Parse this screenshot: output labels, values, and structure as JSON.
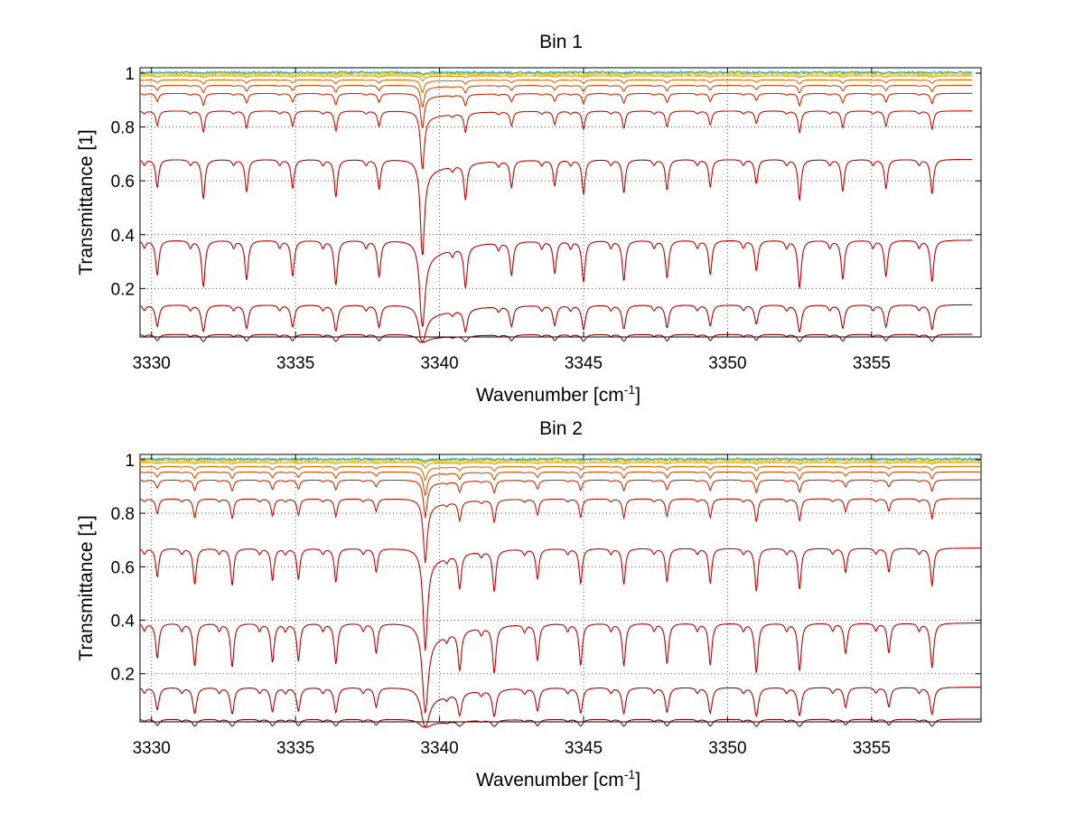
{
  "chart_data": [
    {
      "type": "line",
      "title": "Bin 1",
      "xlabel": "Wavenumber [cm",
      "xlabel_sup": "-1",
      "xlabel_end": "]",
      "ylabel": "Transmittance [1]",
      "xlim": [
        3329.6,
        3358.8
      ],
      "ylim": [
        0.02,
        1.02
      ],
      "xticks": [
        3330,
        3335,
        3340,
        3345,
        3350,
        3355
      ],
      "xtick_labels": [
        "3330",
        "3335",
        "3340",
        "3345",
        "3350",
        "3355"
      ],
      "yticks": [
        0.2,
        0.4,
        0.6,
        0.8,
        1.0
      ],
      "ytick_labels": [
        "0.2",
        "0.4",
        "0.6",
        "0.8",
        "1"
      ],
      "grid": true,
      "x_range_drawn": [
        3329.6,
        3358.5
      ],
      "main_line": {
        "x": 3339.4,
        "width": 0.07
      },
      "lines": [
        3330.2,
        3331.8,
        3333.3,
        3334.9,
        3336.4,
        3337.9,
        3340.9,
        3342.5,
        3344.0,
        3345.0,
        3346.4,
        3347.9,
        3349.4,
        3351.0,
        3352.5,
        3354.0,
        3355.5,
        3357.1
      ],
      "series": [
        {
          "baseline": 0.03,
          "color": "#8b0000"
        },
        {
          "baseline": 0.14,
          "color": "#b00000"
        },
        {
          "baseline": 0.38,
          "color": "#c00000"
        },
        {
          "baseline": 0.68,
          "color": "#c80000"
        },
        {
          "baseline": 0.86,
          "color": "#cc1100"
        },
        {
          "baseline": 0.925,
          "color": "#d42a00"
        },
        {
          "baseline": 0.955,
          "color": "#dc4a00"
        },
        {
          "baseline": 0.975,
          "color": "#e46a00"
        },
        {
          "baseline": 0.99,
          "color": "#ec9000"
        },
        {
          "baseline": 0.997,
          "color": "#f4b800"
        },
        {
          "baseline": 1.0,
          "color": "#ffe400"
        },
        {
          "baseline": 1.003,
          "color": "#20a8c8"
        }
      ]
    },
    {
      "type": "line",
      "title": "Bin 2",
      "xlabel": "Wavenumber [cm",
      "xlabel_sup": "-1",
      "xlabel_end": "]",
      "ylabel": "Transmittance [1]",
      "xlim": [
        3329.6,
        3358.8
      ],
      "ylim": [
        0.02,
        1.02
      ],
      "xticks": [
        3330,
        3335,
        3340,
        3345,
        3350,
        3355
      ],
      "xtick_labels": [
        "3330",
        "3335",
        "3340",
        "3345",
        "3350",
        "3355"
      ],
      "yticks": [
        0.2,
        0.4,
        0.6,
        0.8,
        1.0
      ],
      "ytick_labels": [
        "0.2",
        "0.4",
        "0.6",
        "0.8",
        "1"
      ],
      "grid": true,
      "x_range_drawn": [
        3329.6,
        3358.8
      ],
      "main_line": {
        "x": 3339.5,
        "width": 0.08
      },
      "lines": [
        3330.2,
        3331.5,
        3332.8,
        3334.2,
        3335.1,
        3336.4,
        3337.8,
        3340.7,
        3341.9,
        3343.4,
        3344.9,
        3346.4,
        3347.9,
        3349.4,
        3351.0,
        3352.5,
        3354.1,
        3355.6,
        3357.1
      ],
      "series": [
        {
          "baseline": 0.03,
          "color": "#8b0000"
        },
        {
          "baseline": 0.15,
          "color": "#b00000"
        },
        {
          "baseline": 0.39,
          "color": "#c00000"
        },
        {
          "baseline": 0.67,
          "color": "#c80000"
        },
        {
          "baseline": 0.855,
          "color": "#cc1100"
        },
        {
          "baseline": 0.925,
          "color": "#d42a00"
        },
        {
          "baseline": 0.955,
          "color": "#dc4a00"
        },
        {
          "baseline": 0.975,
          "color": "#e46a00"
        },
        {
          "baseline": 0.99,
          "color": "#ec9000"
        },
        {
          "baseline": 0.997,
          "color": "#f4b800"
        },
        {
          "baseline": 1.0,
          "color": "#ffe400"
        },
        {
          "baseline": 1.003,
          "color": "#20a8c8"
        }
      ]
    }
  ]
}
